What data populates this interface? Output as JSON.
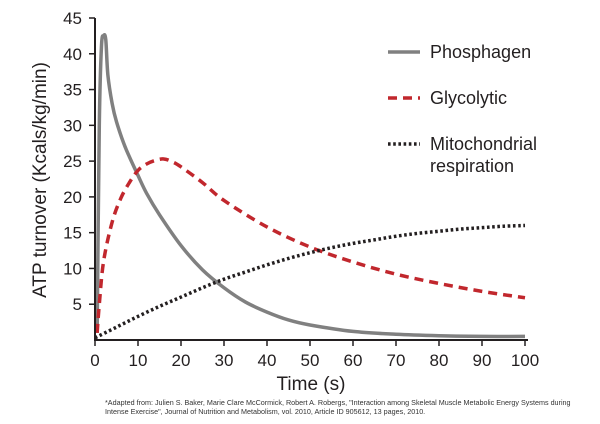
{
  "chart_data": {
    "type": "line",
    "title": "",
    "xlabel": "Time (s)",
    "ylabel": "ATP turnover (Kcals/kg/min)",
    "xlim": [
      0,
      100
    ],
    "ylim": [
      0,
      45
    ],
    "xticks": [
      0,
      10,
      20,
      30,
      40,
      50,
      60,
      70,
      80,
      90,
      100
    ],
    "yticks": [
      5,
      10,
      15,
      20,
      25,
      30,
      35,
      40,
      45
    ],
    "grid": false,
    "legend_position": "top-right",
    "series": [
      {
        "name": "Phosphagen",
        "style": "solid",
        "color": "#808080",
        "x": [
          0.5,
          1,
          1.5,
          2,
          2.5,
          3,
          4,
          5,
          7,
          10,
          12,
          15,
          20,
          25,
          30,
          35,
          40,
          45,
          50,
          60,
          70,
          80,
          90,
          100
        ],
        "y": [
          1,
          30,
          41,
          42.5,
          42,
          37,
          33,
          30.5,
          27,
          23,
          20.5,
          17.5,
          13.2,
          9.8,
          7.3,
          5.3,
          3.9,
          2.8,
          2.1,
          1.2,
          0.8,
          0.6,
          0.5,
          0.5
        ]
      },
      {
        "name": "Glycolytic",
        "style": "dashed",
        "color": "#c1272d",
        "x": [
          0.5,
          1,
          2,
          4,
          6,
          8,
          10,
          12,
          14,
          16,
          18,
          20,
          25,
          30,
          40,
          50,
          60,
          70,
          80,
          90,
          100
        ],
        "y": [
          1,
          5,
          11,
          16.5,
          19.8,
          22,
          23.7,
          24.6,
          25.1,
          25.3,
          24.9,
          24.2,
          22,
          19.5,
          15.8,
          13,
          10.9,
          9.2,
          7.9,
          6.8,
          5.9
        ]
      },
      {
        "name": "Mitochondrial\nrespiration",
        "style": "dotted",
        "color": "#231f20",
        "x": [
          0,
          5,
          10,
          15,
          20,
          25,
          30,
          35,
          40,
          45,
          50,
          55,
          60,
          65,
          70,
          75,
          80,
          85,
          90,
          95,
          100
        ],
        "y": [
          0.3,
          1.8,
          3.3,
          4.7,
          6,
          7.3,
          8.5,
          9.5,
          10.5,
          11.4,
          12.2,
          12.9,
          13.5,
          14,
          14.5,
          14.9,
          15.2,
          15.5,
          15.7,
          15.9,
          16
        ]
      }
    ]
  },
  "footnote": "*Adapted from: Julien S. Baker, Marie Clare McCormick, Robert A. Robergs, \"Interaction among Skeletal Muscle Metabolic Energy Systems during Intense Exercise\", Journal of Nutrition and Metabolism, vol. 2010, Article ID 905612, 13 pages, 2010."
}
